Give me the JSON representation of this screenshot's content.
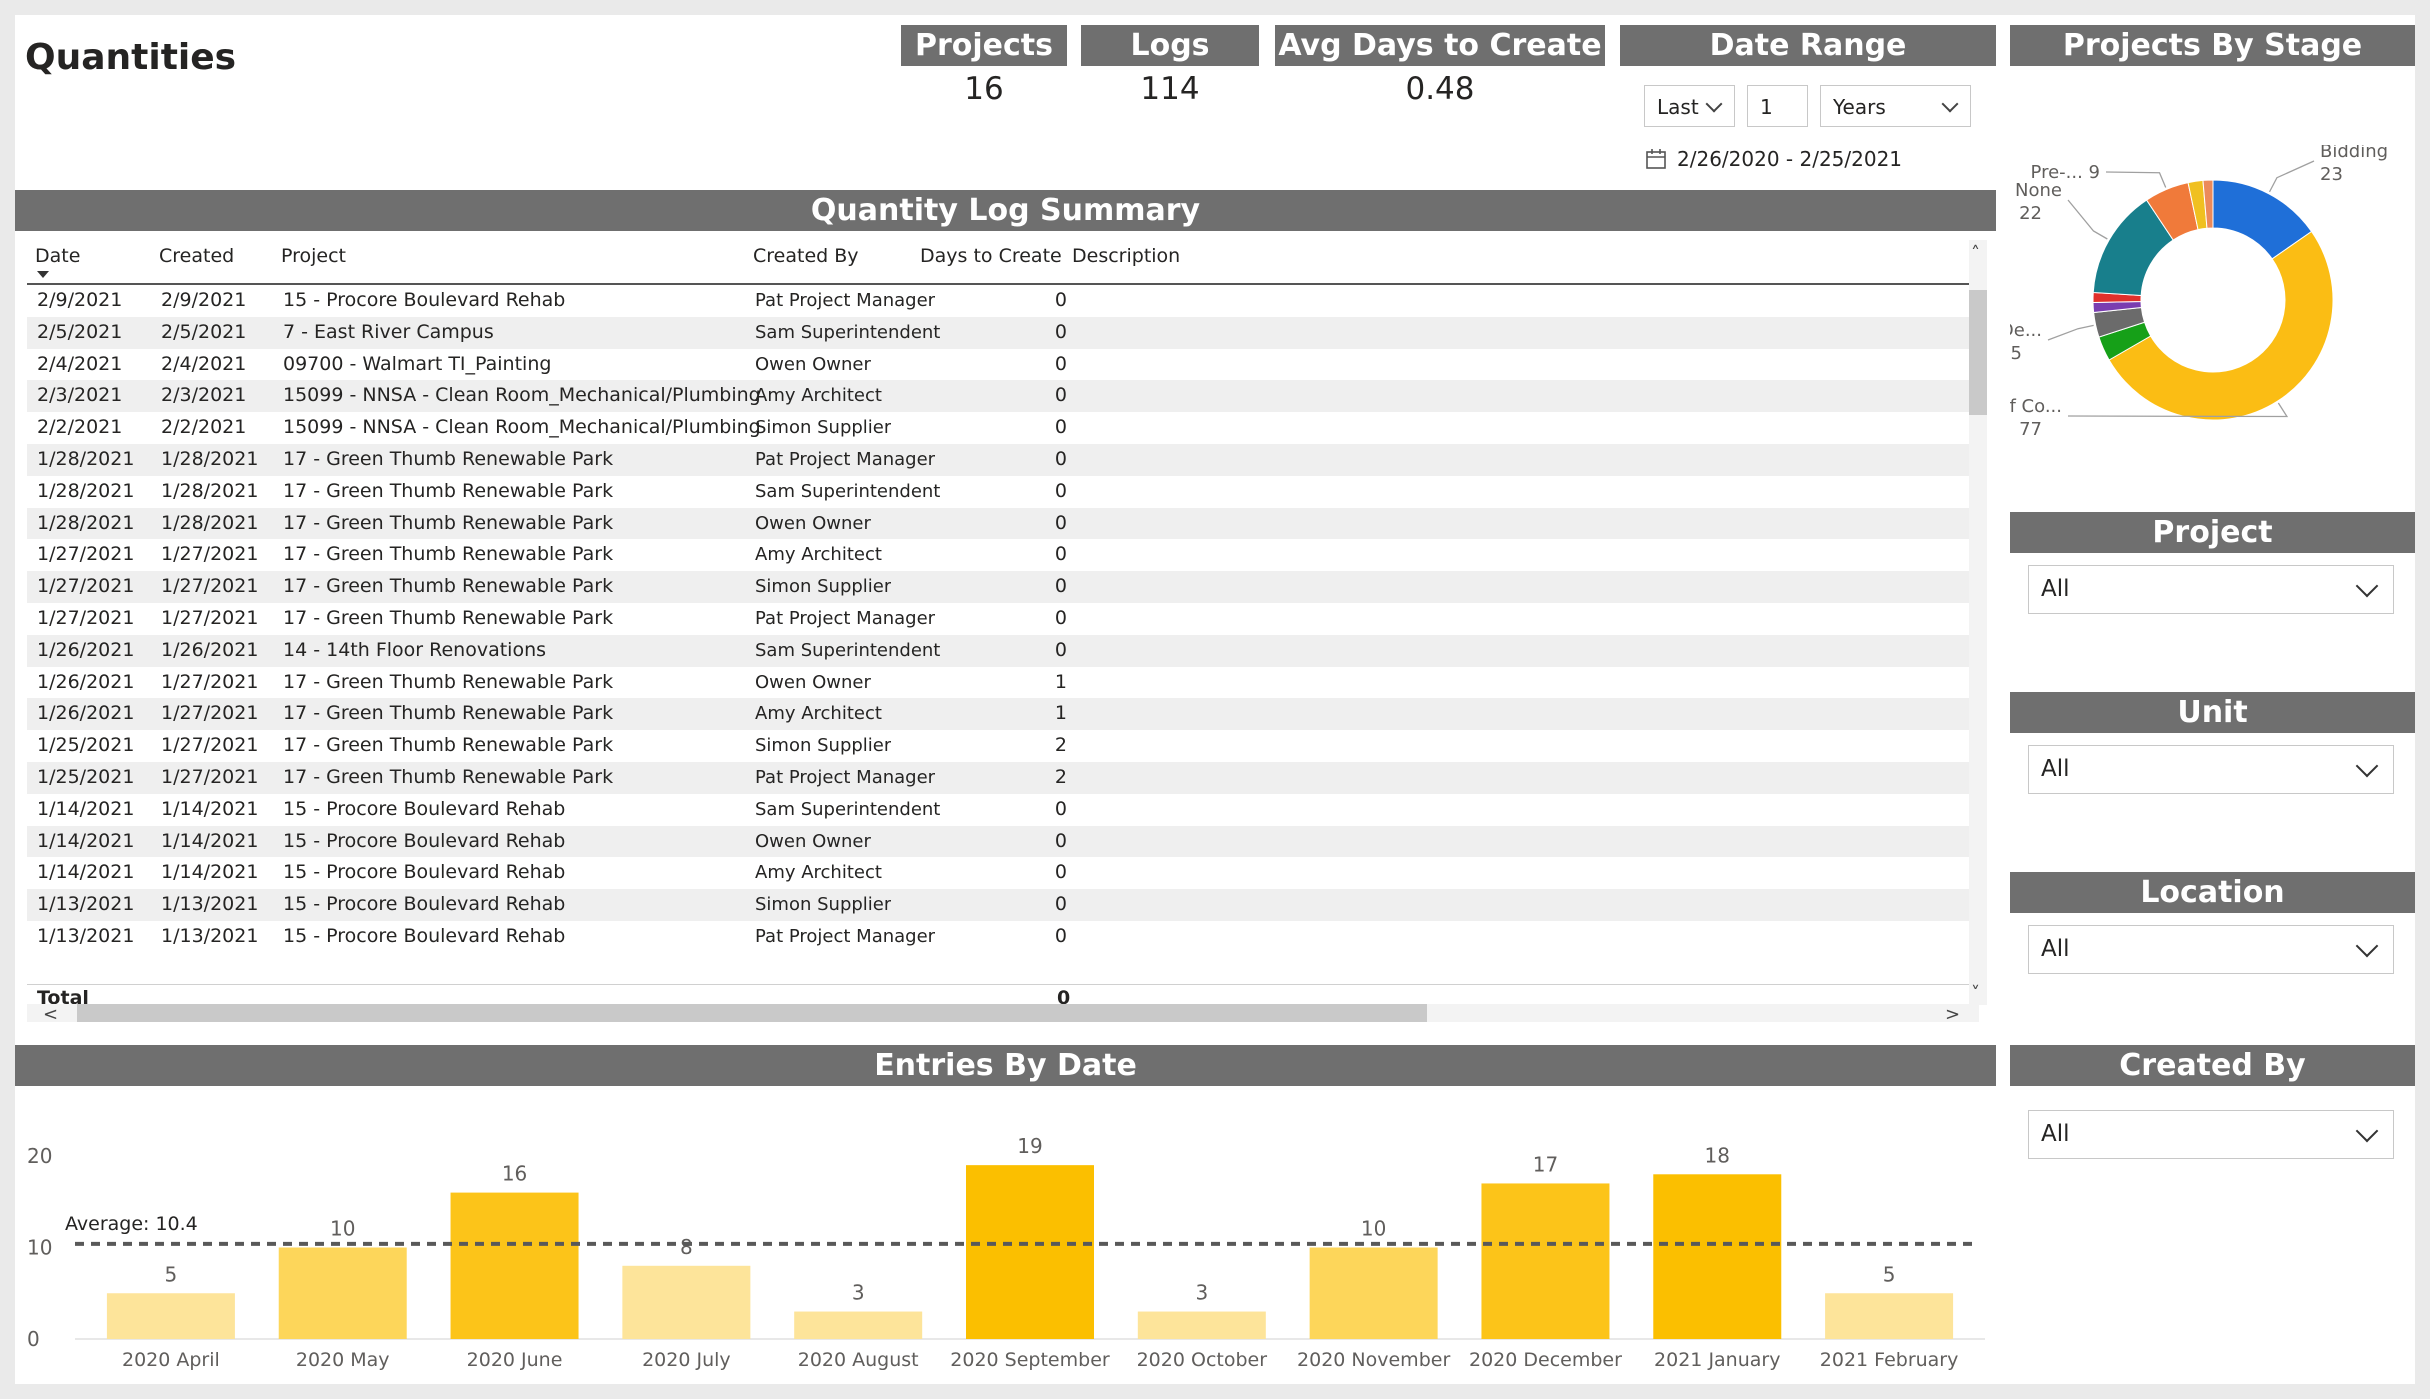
{
  "page": {
    "title": "Quantities"
  },
  "kpis": [
    {
      "title": "Projects",
      "value": "16"
    },
    {
      "title": "Logs",
      "value": "114"
    },
    {
      "title": "Avg Days to Create",
      "value": "0.48"
    }
  ],
  "date_range": {
    "title": "Date Range",
    "mode": "Last",
    "count": "1",
    "unit": "Years",
    "range_text": "2/26/2020 - 2/25/2021",
    "calendar_icon": "calendar-icon"
  },
  "table": {
    "title": "Quantity Log Summary",
    "columns": [
      "Date",
      "Created",
      "Project",
      "Created By",
      "Days to Create",
      "Description"
    ],
    "sort_column": "Date",
    "rows": [
      [
        "2/9/2021",
        "2/9/2021",
        "15 - Procore Boulevard Rehab",
        "Pat Project Manager",
        "0",
        ""
      ],
      [
        "2/5/2021",
        "2/5/2021",
        "7 - East River Campus",
        "Sam Superintendent",
        "0",
        ""
      ],
      [
        "2/4/2021",
        "2/4/2021",
        "09700 - Walmart TI_Painting",
        "Owen Owner",
        "0",
        ""
      ],
      [
        "2/3/2021",
        "2/3/2021",
        "15099 - NNSA - Clean Room_Mechanical/Plumbing",
        "Amy Architect",
        "0",
        ""
      ],
      [
        "2/2/2021",
        "2/2/2021",
        "15099 - NNSA - Clean Room_Mechanical/Plumbing",
        "Simon Supplier",
        "0",
        ""
      ],
      [
        "1/28/2021",
        "1/28/2021",
        "17 - Green Thumb Renewable Park",
        "Pat Project Manager",
        "0",
        ""
      ],
      [
        "1/28/2021",
        "1/28/2021",
        "17 - Green Thumb Renewable Park",
        "Sam Superintendent",
        "0",
        ""
      ],
      [
        "1/28/2021",
        "1/28/2021",
        "17 - Green Thumb Renewable Park",
        "Owen Owner",
        "0",
        ""
      ],
      [
        "1/27/2021",
        "1/27/2021",
        "17 - Green Thumb Renewable Park",
        "Amy Architect",
        "0",
        ""
      ],
      [
        "1/27/2021",
        "1/27/2021",
        "17 - Green Thumb Renewable Park",
        "Simon Supplier",
        "0",
        ""
      ],
      [
        "1/27/2021",
        "1/27/2021",
        "17 - Green Thumb Renewable Park",
        "Pat Project Manager",
        "0",
        ""
      ],
      [
        "1/26/2021",
        "1/26/2021",
        "14 - 14th Floor Renovations",
        "Sam Superintendent",
        "0",
        ""
      ],
      [
        "1/26/2021",
        "1/27/2021",
        "17 - Green Thumb Renewable Park",
        "Owen Owner",
        "1",
        ""
      ],
      [
        "1/26/2021",
        "1/27/2021",
        "17 - Green Thumb Renewable Park",
        "Amy Architect",
        "1",
        ""
      ],
      [
        "1/25/2021",
        "1/27/2021",
        "17 - Green Thumb Renewable Park",
        "Simon Supplier",
        "2",
        ""
      ],
      [
        "1/25/2021",
        "1/27/2021",
        "17 - Green Thumb Renewable Park",
        "Pat Project Manager",
        "2",
        ""
      ],
      [
        "1/14/2021",
        "1/14/2021",
        "15 - Procore Boulevard Rehab",
        "Sam Superintendent",
        "0",
        ""
      ],
      [
        "1/14/2021",
        "1/14/2021",
        "15 - Procore Boulevard Rehab",
        "Owen Owner",
        "0",
        ""
      ],
      [
        "1/14/2021",
        "1/14/2021",
        "15 - Procore Boulevard Rehab",
        "Amy Architect",
        "0",
        ""
      ],
      [
        "1/13/2021",
        "1/13/2021",
        "15 - Procore Boulevard Rehab",
        "Simon Supplier",
        "0",
        ""
      ],
      [
        "1/13/2021",
        "1/13/2021",
        "15 - Procore Boulevard Rehab",
        "Pat Project Manager",
        "0",
        ""
      ]
    ],
    "total_label": "Total",
    "total_value": "0"
  },
  "chart_data": [
    {
      "type": "bar",
      "title": "Entries By Date",
      "categories": [
        "2020 April",
        "2020 May",
        "2020 June",
        "2020 July",
        "2020 August",
        "2020 September",
        "2020 October",
        "2020 November",
        "2020 December",
        "2021 January",
        "2021 February"
      ],
      "values": [
        5,
        10,
        16,
        8,
        3,
        19,
        3,
        10,
        17,
        18,
        5
      ],
      "ylim": [
        0,
        20
      ],
      "yticks": [
        0,
        10,
        20
      ],
      "average": 10.4,
      "average_label": "Average: 10.4",
      "colors": {
        "low": "#fde49a",
        "mid": "#fdd65a",
        "high": "#fcc419",
        "top": "#fbbf00"
      }
    },
    {
      "type": "pie",
      "title": "Projects By Stage",
      "slices": [
        {
          "name": "Bidding",
          "value": 23,
          "color": "#1f6fd8"
        },
        {
          "name": "Course of Co...",
          "value": 77,
          "color": "#fbbd14"
        },
        {
          "name": "",
          "value": 5,
          "color": "#16a018"
        },
        {
          "name": "De...",
          "value": 5,
          "color": "#6b6b6b"
        },
        {
          "name": "",
          "value": 2,
          "color": "#7a3db0"
        },
        {
          "name": "",
          "value": 2,
          "color": "#e0302b"
        },
        {
          "name": "None",
          "value": 22,
          "color": "#187f8c"
        },
        {
          "name": "Pre-...",
          "value": 9,
          "color": "#f07a3a"
        },
        {
          "name": "",
          "value": 3,
          "color": "#f0c020"
        },
        {
          "name": "",
          "value": 2,
          "color": "#ec8a5a"
        }
      ],
      "labels": [
        {
          "name": "Bidding",
          "value": "23"
        },
        {
          "name": "None",
          "value": "22"
        },
        {
          "name": "Pre-...",
          "value": "9"
        },
        {
          "name": "De...",
          "value": "5"
        },
        {
          "name": "Course of Co...",
          "value": "77"
        }
      ]
    }
  ],
  "slicers": [
    {
      "title": "Project",
      "value": "All"
    },
    {
      "title": "Unit",
      "value": "All"
    },
    {
      "title": "Location",
      "value": "All"
    },
    {
      "title": "Created By",
      "value": "All"
    }
  ]
}
